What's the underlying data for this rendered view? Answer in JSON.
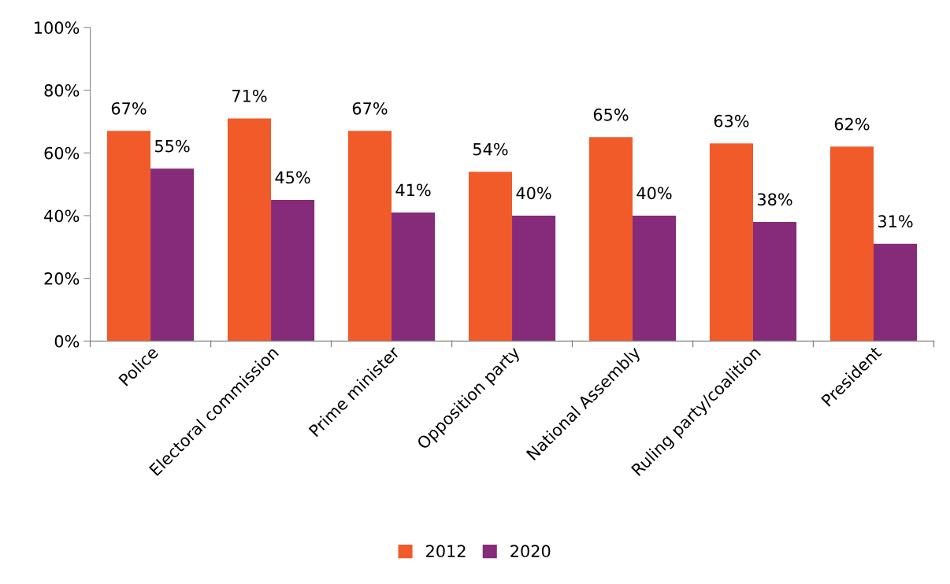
{
  "chart_data": {
    "type": "bar",
    "categories": [
      "Police",
      "Electoral commission",
      "Prime minister",
      "Opposition party",
      "National Assembly",
      "Ruling party/coalition",
      "President"
    ],
    "series": [
      {
        "name": "2012",
        "color": "#f15a29",
        "values": [
          67,
          71,
          67,
          54,
          65,
          63,
          62
        ],
        "value_labels": [
          "67%",
          "71%",
          "67%",
          "54%",
          "65%",
          "63%",
          "62%"
        ]
      },
      {
        "name": "2020",
        "color": "#862a7a",
        "values": [
          55,
          45,
          41,
          40,
          40,
          38,
          31
        ],
        "value_labels": [
          "55%",
          "45%",
          "41%",
          "40%",
          "40%",
          "38%",
          "31%"
        ]
      }
    ],
    "ylim": [
      0,
      100
    ],
    "yticks": [
      {
        "value": 0,
        "label": "0%"
      },
      {
        "value": 20,
        "label": "20%"
      },
      {
        "value": 40,
        "label": "40%"
      },
      {
        "value": 60,
        "label": "60%"
      },
      {
        "value": 80,
        "label": "80%"
      },
      {
        "value": 100,
        "label": "100%"
      }
    ],
    "grid": false,
    "legend": "bottom"
  }
}
